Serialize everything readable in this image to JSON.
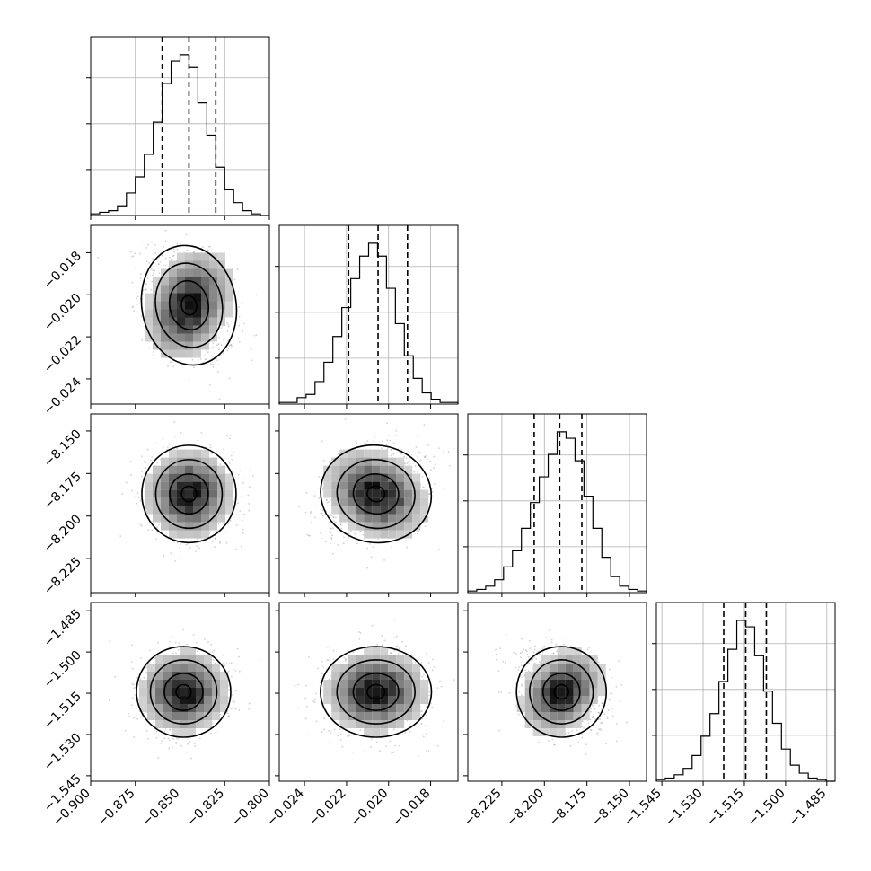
{
  "chart_data": {
    "type": "corner",
    "parameters": [
      {
        "ticks": [
          -0.9,
          -0.875,
          -0.85,
          -0.825,
          -0.8
        ],
        "tick_labels": [
          "−0.900",
          "−0.875",
          "−0.850",
          "−0.825",
          "−0.800"
        ],
        "range": [
          -0.9,
          -0.8
        ],
        "quantiles": [
          -0.86,
          -0.845,
          -0.83
        ],
        "hist": [
          1,
          2,
          3,
          6,
          14,
          24,
          38,
          58,
          82,
          96,
          100,
          92,
          70,
          50,
          30,
          16,
          8,
          3,
          1,
          0
        ],
        "y_ticks": [
          -0.018,
          -0.02,
          -0.022,
          -0.024
        ],
        "y_tick_labels": [
          "−0.018",
          "−0.020",
          "−0.022",
          "−0.024"
        ],
        "y_range": [
          -0.0252,
          -0.0167
        ]
      },
      {
        "ticks": [
          -0.024,
          -0.022,
          -0.02,
          -0.018
        ],
        "tick_labels": [
          "−0.024",
          "−0.022",
          "−0.020",
          "−0.018"
        ],
        "range": [
          -0.0252,
          -0.0167
        ],
        "quantiles": [
          -0.0219,
          -0.0205,
          -0.0191
        ],
        "hist": [
          1,
          1,
          4,
          6,
          14,
          26,
          42,
          60,
          78,
          92,
          100,
          92,
          72,
          50,
          30,
          16,
          7,
          3,
          1,
          1
        ],
        "y_ticks": [
          -8.15,
          -8.175,
          -8.2,
          -8.225
        ],
        "y_tick_labels": [
          "−8.150",
          "−8.175",
          "−8.200",
          "−8.225"
        ],
        "y_range": [
          -8.245,
          -8.14
        ]
      },
      {
        "ticks": [
          -8.225,
          -8.2,
          -8.175,
          -8.15
        ],
        "tick_labels": [
          "−8.225",
          "−8.200",
          "−8.175",
          "−8.150"
        ],
        "range": [
          -8.245,
          -8.14
        ],
        "quantiles": [
          -8.206,
          -8.191,
          -8.178
        ],
        "hist": [
          1,
          2,
          4,
          8,
          16,
          26,
          40,
          56,
          72,
          86,
          100,
          96,
          82,
          60,
          40,
          22,
          10,
          4,
          2,
          1
        ],
        "y_ticks": [
          -1.485,
          -1.5,
          -1.515,
          -1.53,
          -1.545
        ],
        "y_tick_labels": [
          "−1.485",
          "−1.500",
          "−1.515",
          "−1.530",
          "−1.545"
        ],
        "y_range": [
          -1.547,
          -1.482
        ]
      },
      {
        "ticks": [
          -1.545,
          -1.53,
          -1.515,
          -1.5,
          -1.485
        ],
        "tick_labels": [
          "−1.545",
          "−1.530",
          "−1.515",
          "−1.500",
          "−1.485"
        ],
        "range": [
          -1.547,
          -1.482
        ],
        "quantiles": [
          -1.5225,
          -1.5145,
          -1.507
        ],
        "hist": [
          1,
          2,
          4,
          8,
          16,
          28,
          42,
          62,
          82,
          100,
          96,
          78,
          56,
          36,
          20,
          10,
          5,
          2,
          1,
          0
        ]
      }
    ],
    "pairs": [
      {
        "row": 1,
        "col": 0,
        "x": -0.845,
        "y": -0.0205,
        "sx": 0.012,
        "sy": 0.0013,
        "corr": -0.3
      },
      {
        "row": 2,
        "col": 0,
        "x": -0.845,
        "y": -8.187,
        "sx": 0.012,
        "sy": 0.013,
        "corr": 0.0
      },
      {
        "row": 2,
        "col": 1,
        "x": -0.0206,
        "y": -8.187,
        "sx": 0.0012,
        "sy": 0.013,
        "corr": 0.25
      },
      {
        "row": 3,
        "col": 0,
        "x": -0.848,
        "y": -1.5145,
        "sx": 0.012,
        "sy": 0.0075,
        "corr": 0.0
      },
      {
        "row": 3,
        "col": 1,
        "x": -0.0206,
        "y": -1.5145,
        "sx": 0.0012,
        "sy": 0.0075,
        "corr": 0.0
      },
      {
        "row": 3,
        "col": 2,
        "x": -8.19,
        "y": -1.5145,
        "sx": 0.012,
        "sy": 0.0075,
        "corr": -0.3
      }
    ],
    "diag_yticks": 3,
    "grid": true,
    "colors": {
      "line": "#000000",
      "grid": "#b0b0b0",
      "points": "#7a7a7a"
    }
  }
}
